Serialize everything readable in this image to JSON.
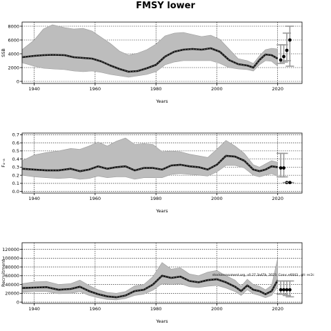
{
  "title": "FMSY lower",
  "chart_data": [
    {
      "type": "line",
      "xlabel": "Years",
      "ylabel": "SSB",
      "xlim": [
        1936,
        2028
      ],
      "ylim": [
        -300,
        8600
      ],
      "xticks": [
        1940,
        1960,
        1980,
        2000,
        2020
      ],
      "yticks": [
        0,
        2000,
        4000,
        6000,
        8000
      ],
      "ytick_labels": [
        "0",
        "2000",
        "4000",
        "6000",
        "8000"
      ],
      "grid": true,
      "x": [
        1936,
        1940,
        1943,
        1946,
        1950,
        1953,
        1956,
        1959,
        1962,
        1965,
        1968,
        1971,
        1974,
        1977,
        1980,
        1983,
        1986,
        1989,
        1992,
        1995,
        1998,
        2001,
        2004,
        2007,
        2010,
        2012,
        2014,
        2016,
        2018,
        2020
      ],
      "y": [
        3500,
        3700,
        3800,
        3850,
        3800,
        3500,
        3400,
        3300,
        2900,
        2300,
        1800,
        1400,
        1500,
        1900,
        2400,
        3600,
        4300,
        4600,
        4700,
        4600,
        4800,
        4300,
        3100,
        2500,
        2300,
        2000,
        3100,
        3900,
        3800,
        3300
      ],
      "lower": [
        2700,
        2200,
        1900,
        1800,
        1700,
        1500,
        1400,
        1500,
        1300,
        1000,
        800,
        600,
        800,
        1000,
        1400,
        2400,
        2800,
        3000,
        3000,
        3000,
        3000,
        2600,
        2000,
        1800,
        1700,
        1500,
        2400,
        3000,
        2900,
        2200
      ],
      "upper": [
        4600,
        6000,
        7600,
        8200,
        7800,
        7600,
        7700,
        7300,
        6400,
        5500,
        4400,
        3800,
        4100,
        4600,
        5400,
        6600,
        7000,
        7100,
        6800,
        6500,
        6700,
        6100,
        4700,
        3300,
        3000,
        2600,
        3700,
        4600,
        4800,
        4700
      ],
      "projection_points": [
        {
          "x": 2021,
          "y": 3100,
          "lo": 2600,
          "hi": 5300
        },
        {
          "x": 2022,
          "y": 3600,
          "lo": 2800,
          "hi": 5300
        },
        {
          "x": 2023,
          "y": 4500,
          "lo": 3000,
          "hi": 7000
        },
        {
          "x": 2024,
          "y": 6000,
          "lo": 2200,
          "hi": 8000
        }
      ]
    },
    {
      "type": "line",
      "xlabel": "Years",
      "ylabel": "F₄₋₈",
      "xlim": [
        1936,
        2028
      ],
      "ylim": [
        -0.02,
        0.72
      ],
      "xticks": [
        1940,
        1960,
        1980,
        2000,
        2020
      ],
      "yticks": [
        0.0,
        0.1,
        0.2,
        0.3,
        0.4,
        0.5,
        0.6,
        0.7
      ],
      "ytick_labels": [
        "0.0",
        "0.1",
        "0.2",
        "0.3",
        "0.4",
        "0.5",
        "0.6",
        "0.7"
      ],
      "grid": true,
      "x": [
        1936,
        1940,
        1944,
        1948,
        1952,
        1955,
        1958,
        1961,
        1964,
        1967,
        1970,
        1973,
        1976,
        1979,
        1982,
        1985,
        1988,
        1991,
        1994,
        1997,
        2000,
        2003,
        2006,
        2009,
        2012,
        2014,
        2016,
        2018,
        2020
      ],
      "y": [
        0.28,
        0.27,
        0.26,
        0.26,
        0.28,
        0.25,
        0.27,
        0.31,
        0.28,
        0.3,
        0.31,
        0.26,
        0.29,
        0.29,
        0.27,
        0.32,
        0.33,
        0.31,
        0.3,
        0.27,
        0.33,
        0.44,
        0.43,
        0.38,
        0.27,
        0.25,
        0.27,
        0.31,
        0.3
      ],
      "lower": [
        0.2,
        0.18,
        0.17,
        0.16,
        0.17,
        0.15,
        0.16,
        0.19,
        0.17,
        0.18,
        0.18,
        0.15,
        0.17,
        0.17,
        0.17,
        0.21,
        0.22,
        0.21,
        0.2,
        0.19,
        0.24,
        0.32,
        0.32,
        0.29,
        0.2,
        0.18,
        0.2,
        0.22,
        0.19
      ],
      "upper": [
        0.38,
        0.45,
        0.48,
        0.5,
        0.53,
        0.52,
        0.56,
        0.61,
        0.56,
        0.62,
        0.66,
        0.58,
        0.59,
        0.58,
        0.49,
        0.5,
        0.49,
        0.46,
        0.44,
        0.42,
        0.52,
        0.63,
        0.56,
        0.47,
        0.33,
        0.3,
        0.34,
        0.38,
        0.36
      ],
      "projection_points": [
        {
          "x": 2021,
          "y": 0.29,
          "lo": 0.18,
          "hi": 0.47
        },
        {
          "x": 2022,
          "y": 0.29,
          "lo": 0.18,
          "hi": 0.47
        },
        {
          "x": 2023,
          "y": 0.11,
          "lo": 0.11,
          "hi": 0.11
        },
        {
          "x": 2024,
          "y": 0.11,
          "lo": 0.11,
          "hi": 0.11
        }
      ]
    },
    {
      "type": "line",
      "xlabel": "Years",
      "ylabel": "Recruitment",
      "xlim": [
        1936,
        2028
      ],
      "ylim": [
        -3000,
        135000
      ],
      "xticks": [
        1940,
        1960,
        1980,
        2000,
        2020
      ],
      "yticks": [
        0,
        20000,
        40000,
        60000,
        80000,
        100000,
        120000
      ],
      "ytick_labels": [
        "0",
        "20000",
        "40000",
        "60000",
        "80000",
        "100000",
        "120000"
      ],
      "grid": true,
      "annotation": "stockassessment.org, v0.27.3a47b, 2023, Conv: e6043 , git: ec2c",
      "x": [
        1936,
        1940,
        1944,
        1948,
        1952,
        1955,
        1958,
        1961,
        1964,
        1967,
        1970,
        1973,
        1976,
        1979,
        1982,
        1985,
        1988,
        1991,
        1994,
        1997,
        2000,
        2003,
        2006,
        2008,
        2010,
        2012,
        2014,
        2016,
        2018,
        2020
      ],
      "y": [
        32000,
        33000,
        34000,
        28000,
        30000,
        35000,
        25000,
        18000,
        13000,
        11000,
        15000,
        25000,
        28000,
        40000,
        60000,
        55000,
        58000,
        48000,
        45000,
        50000,
        52000,
        45000,
        35000,
        25000,
        38000,
        28000,
        25000,
        18000,
        25000,
        50000
      ],
      "lower": [
        22000,
        24000,
        24000,
        19000,
        20000,
        24000,
        15000,
        10000,
        6000,
        5000,
        8000,
        15000,
        18000,
        27000,
        42000,
        40000,
        42000,
        35000,
        33000,
        36000,
        38000,
        32000,
        24000,
        15000,
        28000,
        19000,
        15000,
        10000,
        15000,
        35000
      ],
      "upper": [
        42000,
        46000,
        47000,
        40000,
        42000,
        50000,
        38000,
        28000,
        22000,
        20000,
        24000,
        37000,
        40000,
        58000,
        90000,
        75000,
        78000,
        64000,
        60000,
        68000,
        72000,
        60000,
        50000,
        36000,
        52000,
        40000,
        36000,
        28000,
        38000,
        100000
      ],
      "projection_points": [
        {
          "x": 2021,
          "y": 28000,
          "lo": 18000,
          "hi": 48000
        },
        {
          "x": 2022,
          "y": 28000,
          "lo": 18000,
          "hi": 48000
        },
        {
          "x": 2023,
          "y": 28000,
          "lo": 15000,
          "hi": 48000
        },
        {
          "x": 2024,
          "y": 28000,
          "lo": 12000,
          "hi": 48000
        }
      ]
    }
  ]
}
